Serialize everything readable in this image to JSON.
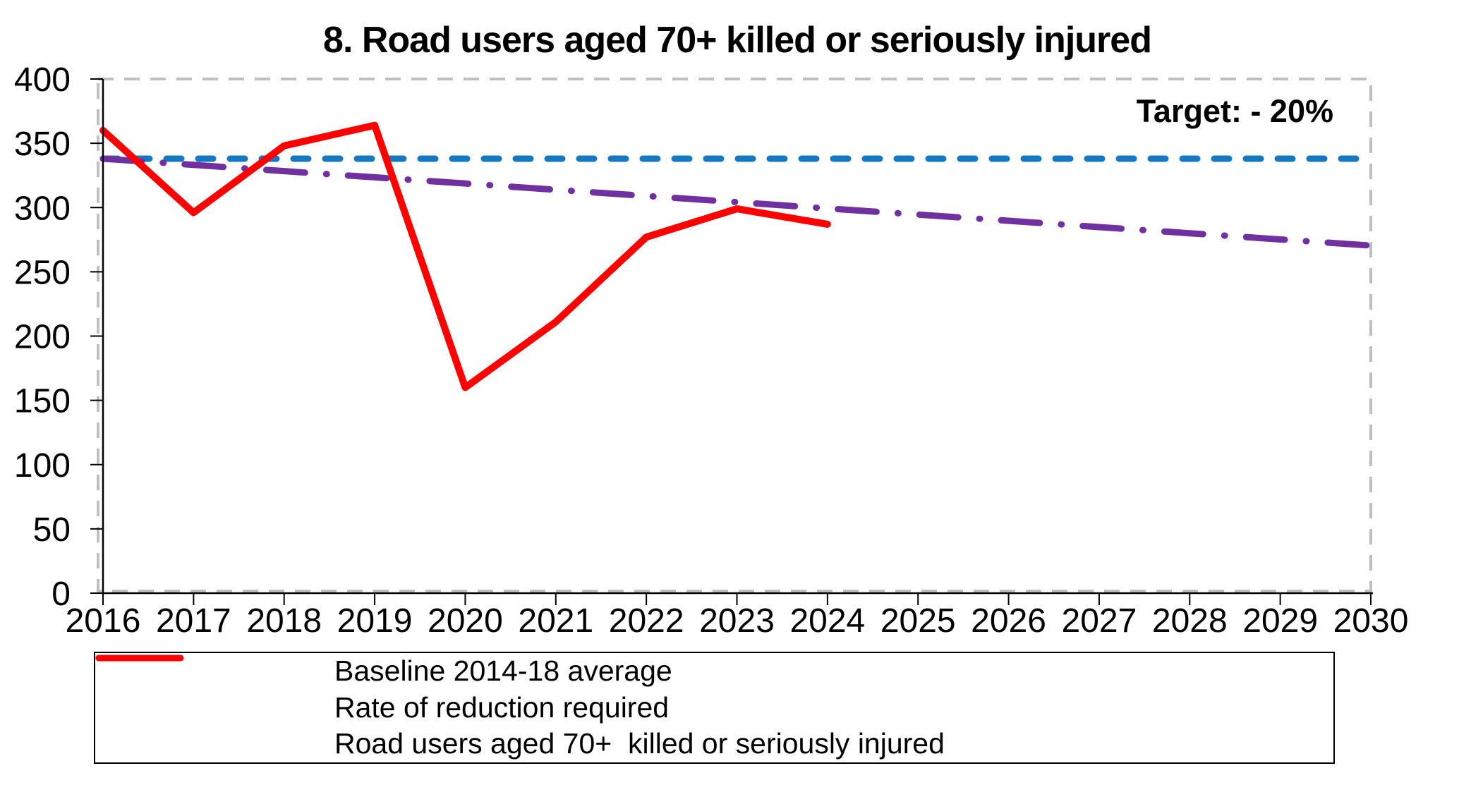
{
  "chart_data": {
    "type": "line",
    "title": "8. Road users aged 70+  killed or seriously injured",
    "annotation": {
      "text": "Target: - 20%",
      "color": "#FF0000"
    },
    "categories": [
      "2016",
      "2017",
      "2018",
      "2019",
      "2020",
      "2021",
      "2022",
      "2023",
      "2024",
      "2025",
      "2026",
      "2027",
      "2028",
      "2029",
      "2030"
    ],
    "xlabel": "",
    "ylabel": "",
    "ylim": [
      0,
      400
    ],
    "ytick_step": 50,
    "grid": false,
    "legend_position": "bottom",
    "plot_border_color": "#BFBFBF",
    "axis_color": "#000000",
    "series": [
      {
        "name": "Baseline 2014-18 average",
        "color": "#1778C2",
        "style": "dashed",
        "values": [
          338,
          338,
          338,
          338,
          338,
          338,
          338,
          338,
          338,
          338,
          338,
          338,
          338,
          338,
          338
        ]
      },
      {
        "name": "Rate of reduction required",
        "color": "#7030A0",
        "style": "dashdot",
        "values": [
          338,
          333.2,
          328.3,
          323.5,
          318.7,
          313.8,
          309,
          304.2,
          299.3,
          294.5,
          289.7,
          284.8,
          280,
          275.2,
          270.4
        ]
      },
      {
        "name": "Road users aged 70+  killed or seriously injured",
        "color": "#FF0000",
        "style": "solid",
        "values": [
          360,
          296,
          348,
          364,
          160,
          211,
          277,
          299,
          287
        ]
      }
    ]
  }
}
